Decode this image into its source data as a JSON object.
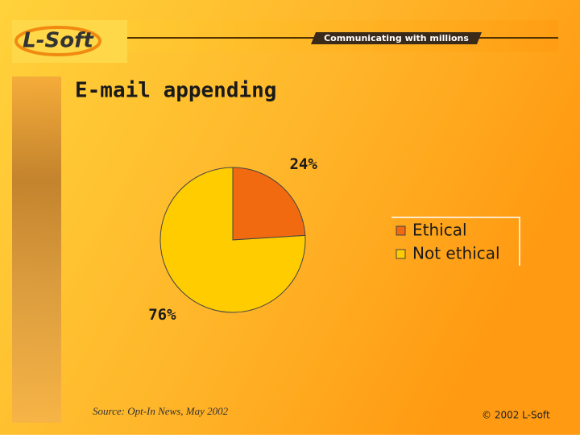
{
  "logo": "L-Soft",
  "tagline": "Communicating with millions",
  "chart_data": {
    "type": "pie",
    "title": "E-mail appending",
    "categories": [
      "Ethical",
      "Not ethical"
    ],
    "values": [
      24,
      76
    ],
    "value_labels": [
      "24%",
      "76%"
    ],
    "colors": [
      "#f26a10",
      "#ffcc00"
    ],
    "legend": "right"
  },
  "source": "Source: Opt-In News, May 2002",
  "copyright": "© 2002 L-Soft"
}
